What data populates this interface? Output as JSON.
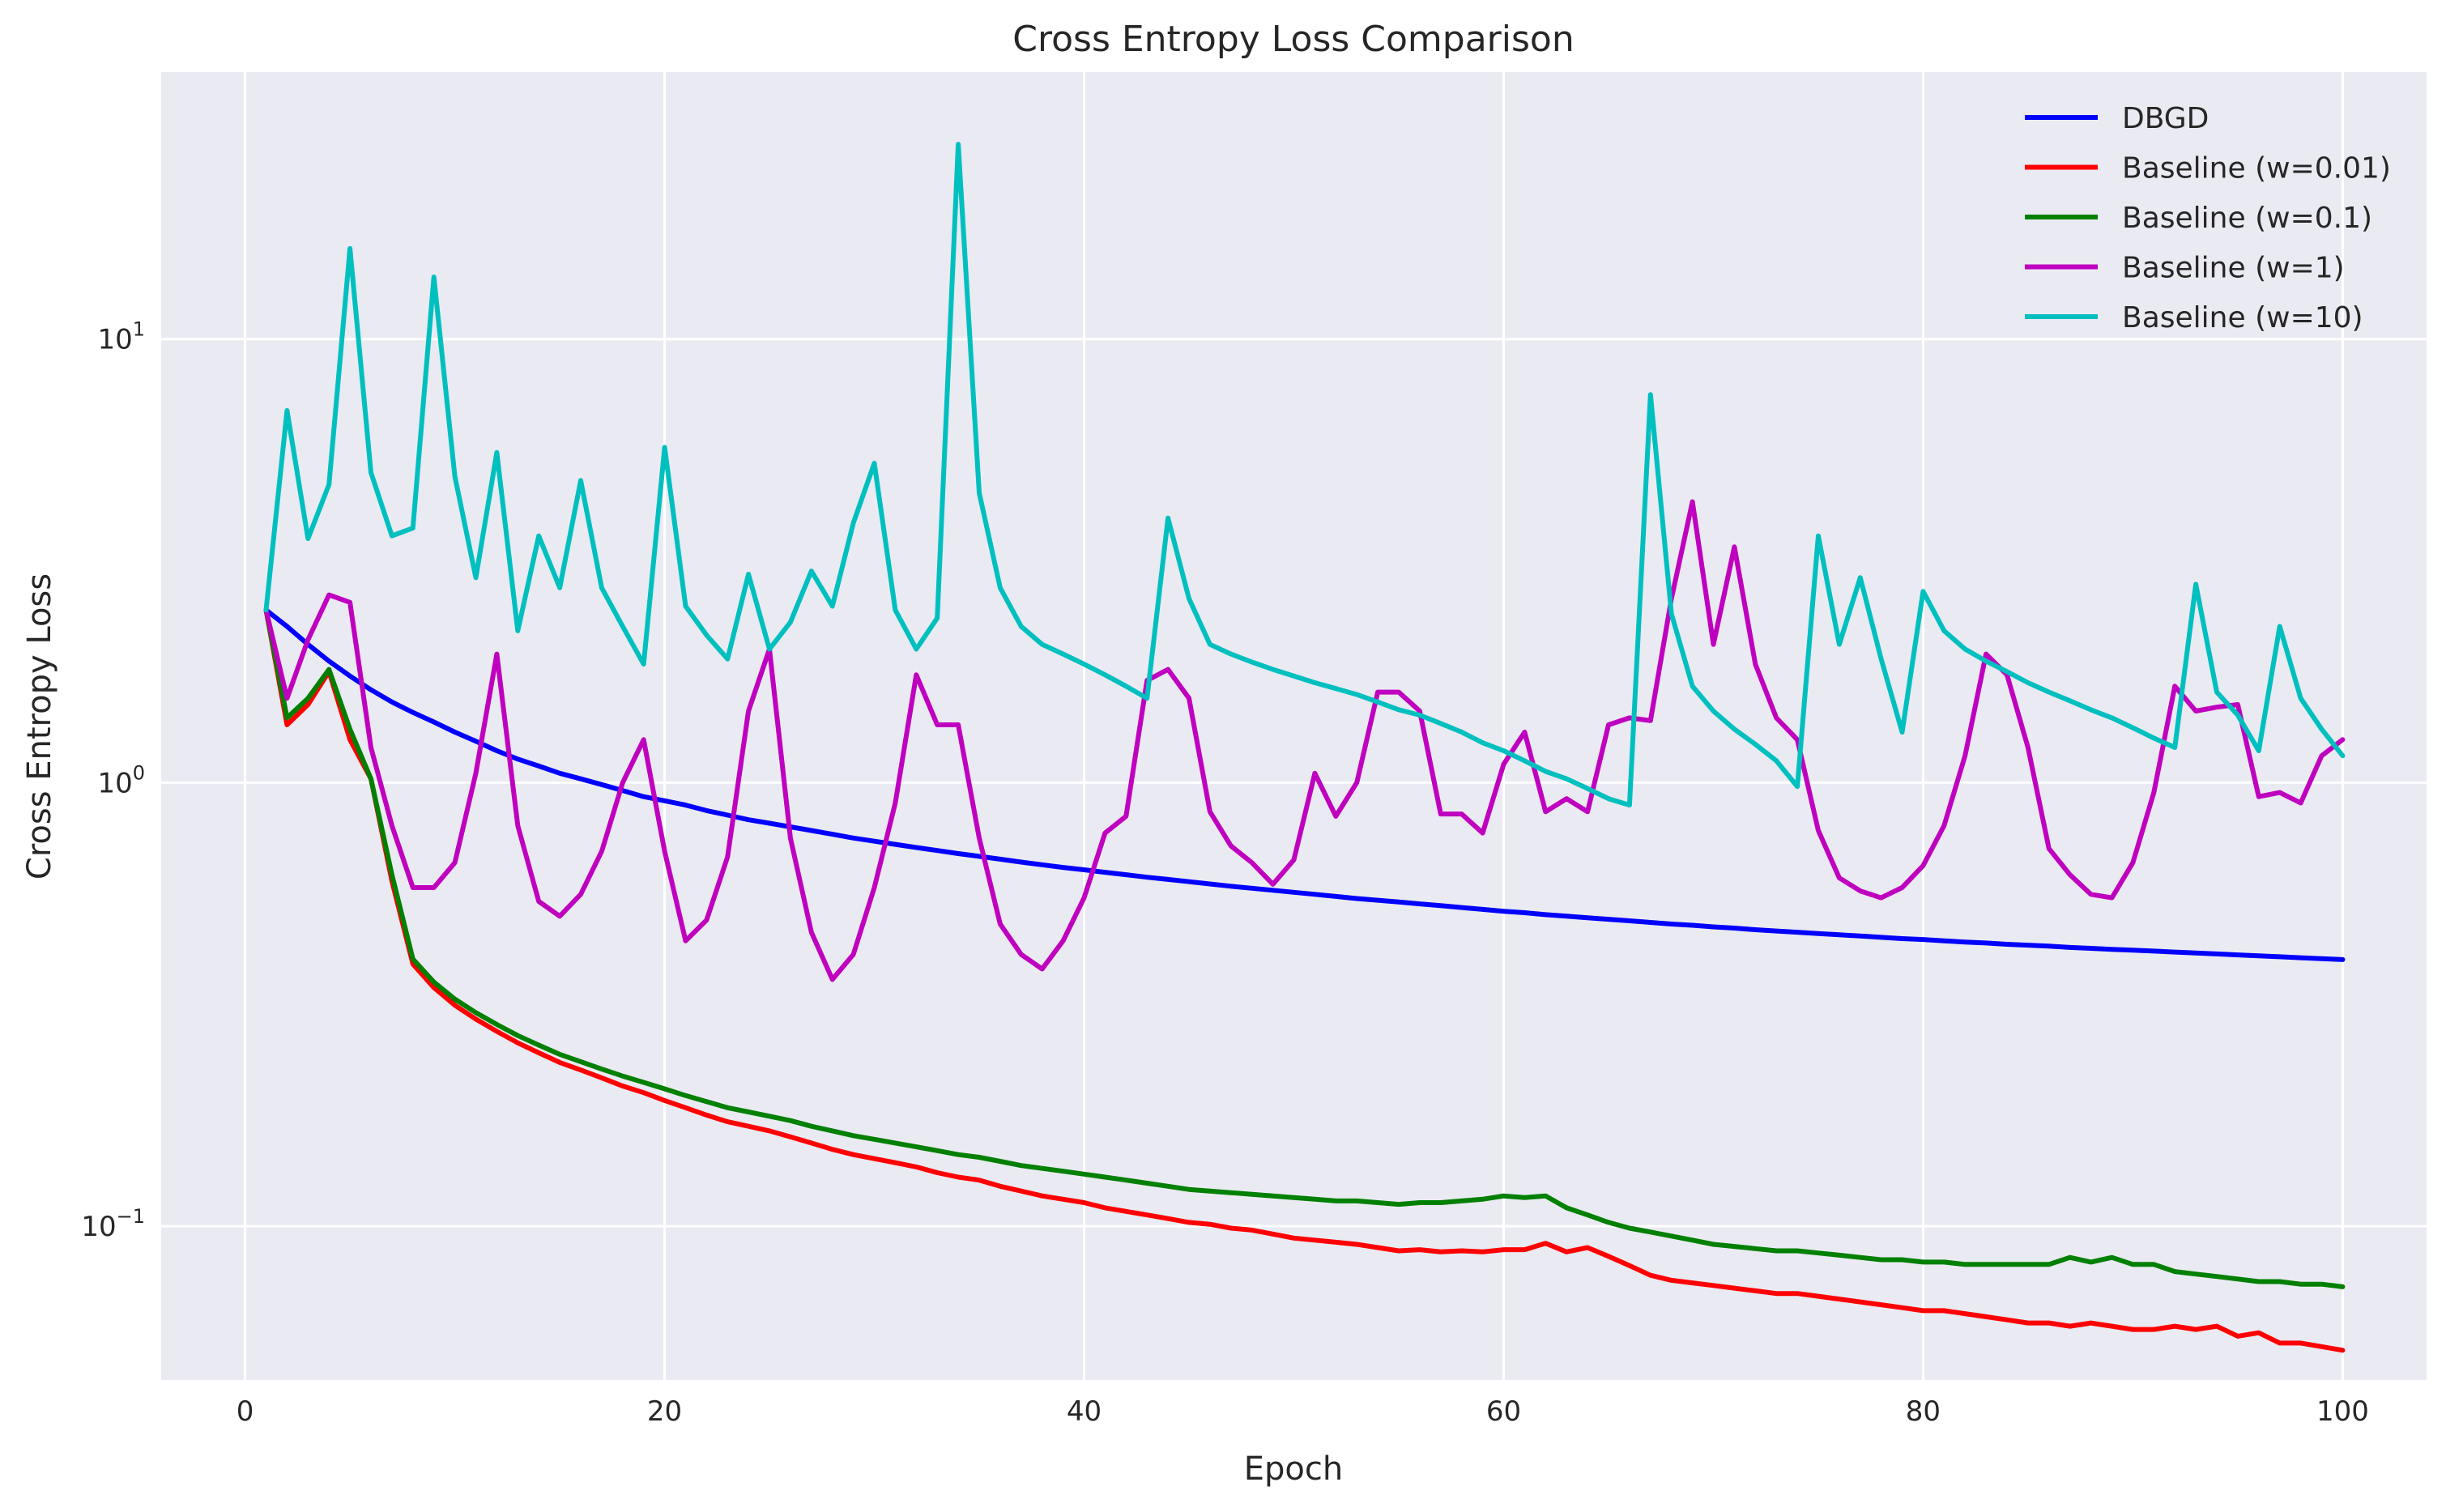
{
  "chart_data": {
    "type": "line",
    "title": "Cross Entropy Loss Comparison",
    "xlabel": "Epoch",
    "ylabel": "Cross Entropy Loss",
    "yscale": "log",
    "xlim": [
      -4,
      104
    ],
    "ylim": [
      0.045,
      40
    ],
    "xticks": [
      0,
      20,
      40,
      60,
      80,
      100
    ],
    "yticks": [
      0.1,
      1,
      10
    ],
    "ytick_labels": [
      {
        "base": "10",
        "exp": "−1"
      },
      {
        "base": "10",
        "exp": "0"
      },
      {
        "base": "10",
        "exp": "1"
      }
    ],
    "grid": true,
    "legend_position": "top-right",
    "x": [
      1,
      2,
      3,
      4,
      5,
      6,
      7,
      8,
      9,
      10,
      11,
      12,
      13,
      14,
      15,
      16,
      17,
      18,
      19,
      20,
      21,
      22,
      23,
      24,
      25,
      26,
      27,
      28,
      29,
      30,
      31,
      32,
      33,
      34,
      35,
      36,
      37,
      38,
      39,
      40,
      41,
      42,
      43,
      44,
      45,
      46,
      47,
      48,
      49,
      50,
      51,
      52,
      53,
      54,
      55,
      56,
      57,
      58,
      59,
      60,
      61,
      62,
      63,
      64,
      65,
      66,
      67,
      68,
      69,
      70,
      71,
      72,
      73,
      74,
      75,
      76,
      77,
      78,
      79,
      80,
      81,
      82,
      83,
      84,
      85,
      86,
      87,
      88,
      89,
      90,
      91,
      92,
      93,
      94,
      95,
      96,
      97,
      98,
      99,
      100
    ],
    "series": [
      {
        "name": "DBGD",
        "color": "#0000ff",
        "values": [
          2.45,
          2.25,
          2.05,
          1.88,
          1.74,
          1.62,
          1.52,
          1.44,
          1.37,
          1.3,
          1.24,
          1.18,
          1.13,
          1.09,
          1.05,
          1.02,
          0.99,
          0.96,
          0.93,
          0.91,
          0.89,
          0.865,
          0.845,
          0.825,
          0.81,
          0.795,
          0.78,
          0.765,
          0.75,
          0.738,
          0.726,
          0.714,
          0.703,
          0.692,
          0.682,
          0.672,
          0.662,
          0.653,
          0.644,
          0.636,
          0.628,
          0.62,
          0.612,
          0.605,
          0.598,
          0.591,
          0.584,
          0.578,
          0.572,
          0.566,
          0.56,
          0.554,
          0.548,
          0.543,
          0.538,
          0.533,
          0.528,
          0.523,
          0.518,
          0.513,
          0.509,
          0.504,
          0.5,
          0.496,
          0.492,
          0.488,
          0.484,
          0.48,
          0.477,
          0.473,
          0.47,
          0.466,
          0.463,
          0.46,
          0.457,
          0.454,
          0.451,
          0.448,
          0.445,
          0.443,
          0.44,
          0.437,
          0.435,
          0.432,
          0.43,
          0.428,
          0.425,
          0.423,
          0.421,
          0.419,
          0.417,
          0.415,
          0.413,
          0.411,
          0.409,
          0.407,
          0.405,
          0.403,
          0.401,
          0.399
        ]
      },
      {
        "name": "Baseline (w=0.01)",
        "color": "#ff0000",
        "values": [
          2.45,
          1.35,
          1.5,
          1.78,
          1.25,
          1.02,
          0.6,
          0.39,
          0.345,
          0.315,
          0.293,
          0.275,
          0.259,
          0.246,
          0.234,
          0.225,
          0.216,
          0.207,
          0.2,
          0.192,
          0.185,
          0.178,
          0.172,
          0.168,
          0.164,
          0.159,
          0.154,
          0.149,
          0.145,
          0.142,
          0.139,
          0.136,
          0.132,
          0.129,
          0.127,
          0.123,
          0.12,
          0.117,
          0.115,
          0.113,
          0.11,
          0.108,
          0.106,
          0.104,
          0.102,
          0.101,
          0.099,
          0.098,
          0.096,
          0.094,
          0.093,
          0.092,
          0.091,
          0.0895,
          0.088,
          0.0885,
          0.0875,
          0.088,
          0.0875,
          0.0885,
          0.0885,
          0.0915,
          0.0875,
          0.0895,
          0.0855,
          0.0815,
          0.0775,
          0.0755,
          0.0745,
          0.0735,
          0.0725,
          0.0715,
          0.0705,
          0.0705,
          0.0695,
          0.0685,
          0.0675,
          0.0665,
          0.0655,
          0.0645,
          0.0645,
          0.0635,
          0.0625,
          0.0615,
          0.0605,
          0.0605,
          0.0595,
          0.0605,
          0.0595,
          0.0585,
          0.0585,
          0.0595,
          0.0585,
          0.0595,
          0.0565,
          0.0575,
          0.0545,
          0.0545,
          0.0535,
          0.0525
        ]
      },
      {
        "name": "Baseline (w=0.1)",
        "color": "#008000",
        "values": [
          2.45,
          1.4,
          1.55,
          1.8,
          1.32,
          1.02,
          0.62,
          0.4,
          0.355,
          0.325,
          0.303,
          0.285,
          0.269,
          0.256,
          0.244,
          0.235,
          0.226,
          0.218,
          0.211,
          0.204,
          0.197,
          0.191,
          0.185,
          0.181,
          0.177,
          0.173,
          0.168,
          0.164,
          0.16,
          0.157,
          0.154,
          0.151,
          0.148,
          0.145,
          0.143,
          0.14,
          0.137,
          0.135,
          0.133,
          0.131,
          0.129,
          0.127,
          0.125,
          0.123,
          0.121,
          0.12,
          0.119,
          0.118,
          0.117,
          0.116,
          0.115,
          0.114,
          0.114,
          0.113,
          0.112,
          0.113,
          0.113,
          0.114,
          0.115,
          0.117,
          0.116,
          0.117,
          0.11,
          0.106,
          0.102,
          0.099,
          0.097,
          0.095,
          0.093,
          0.091,
          0.09,
          0.089,
          0.088,
          0.088,
          0.087,
          0.086,
          0.085,
          0.084,
          0.084,
          0.083,
          0.083,
          0.082,
          0.082,
          0.082,
          0.082,
          0.082,
          0.085,
          0.083,
          0.085,
          0.082,
          0.082,
          0.079,
          0.078,
          0.077,
          0.076,
          0.075,
          0.075,
          0.074,
          0.074,
          0.073
        ]
      },
      {
        "name": "Baseline (w=1)",
        "color": "#bf00bf",
        "values": [
          2.45,
          1.55,
          2.1,
          2.65,
          2.55,
          1.2,
          0.8,
          0.58,
          0.58,
          0.66,
          1.05,
          1.95,
          0.8,
          0.54,
          0.5,
          0.56,
          0.7,
          1.0,
          1.25,
          0.7,
          0.44,
          0.49,
          0.68,
          1.45,
          2.0,
          0.75,
          0.46,
          0.36,
          0.41,
          0.58,
          0.9,
          1.75,
          1.35,
          1.35,
          0.75,
          0.48,
          0.41,
          0.38,
          0.44,
          0.55,
          0.77,
          0.84,
          1.7,
          1.8,
          1.55,
          0.86,
          0.72,
          0.66,
          0.59,
          0.67,
          1.05,
          0.84,
          1.0,
          1.6,
          1.6,
          1.45,
          0.85,
          0.85,
          0.77,
          1.1,
          1.3,
          0.86,
          0.92,
          0.86,
          1.35,
          1.4,
          1.38,
          2.6,
          4.3,
          2.05,
          3.4,
          1.85,
          1.4,
          1.25,
          0.78,
          0.61,
          0.57,
          0.55,
          0.58,
          0.65,
          0.8,
          1.15,
          1.95,
          1.75,
          1.2,
          0.71,
          0.62,
          0.56,
          0.55,
          0.66,
          0.95,
          1.65,
          1.45,
          1.48,
          1.5,
          0.93,
          0.95,
          0.9,
          1.15,
          1.25
        ]
      },
      {
        "name": "Baseline (w=10)",
        "color": "#00bfbf",
        "values": [
          2.45,
          6.9,
          3.55,
          4.7,
          16.0,
          5.0,
          3.6,
          3.75,
          13.8,
          4.9,
          2.9,
          5.55,
          2.2,
          3.6,
          2.75,
          4.8,
          2.75,
          2.25,
          1.85,
          5.7,
          2.5,
          2.15,
          1.9,
          2.95,
          2.0,
          2.3,
          3.0,
          2.5,
          3.85,
          5.25,
          2.45,
          2.0,
          2.35,
          27.5,
          4.5,
          2.75,
          2.25,
          2.05,
          1.95,
          1.85,
          1.75,
          1.65,
          1.55,
          3.95,
          2.6,
          2.05,
          1.95,
          1.87,
          1.8,
          1.74,
          1.68,
          1.63,
          1.58,
          1.52,
          1.46,
          1.42,
          1.36,
          1.3,
          1.23,
          1.18,
          1.12,
          1.06,
          1.02,
          0.97,
          0.92,
          0.89,
          7.5,
          2.4,
          1.65,
          1.45,
          1.32,
          1.22,
          1.12,
          0.98,
          3.6,
          2.05,
          2.9,
          1.9,
          1.3,
          2.7,
          2.2,
          2.0,
          1.88,
          1.78,
          1.68,
          1.6,
          1.53,
          1.46,
          1.4,
          1.33,
          1.26,
          1.2,
          2.8,
          1.6,
          1.42,
          1.18,
          2.25,
          1.55,
          1.32,
          1.15
        ]
      }
    ]
  }
}
